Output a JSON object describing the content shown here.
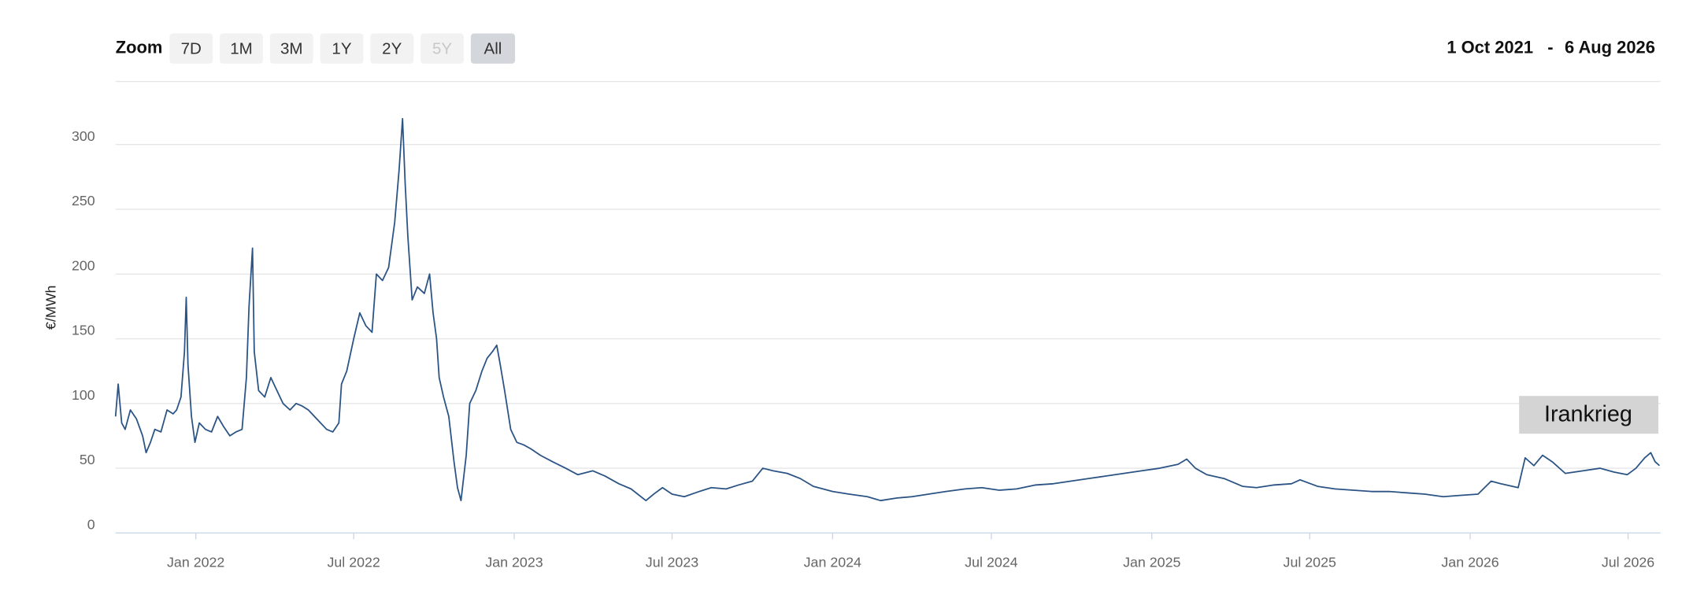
{
  "range_selector": {
    "label": "Zoom",
    "buttons": [
      {
        "label": "7D"
      },
      {
        "label": "1M"
      },
      {
        "label": "3M"
      },
      {
        "label": "1Y"
      },
      {
        "label": "2Y"
      },
      {
        "label": "5Y",
        "disabled": true
      },
      {
        "label": "All",
        "selected": true
      }
    ]
  },
  "date_range": {
    "from": "1 Oct 2021",
    "separator": "-",
    "to": "6 Aug 2026"
  },
  "chart_data": {
    "type": "line",
    "y_label": "€/MWh",
    "color": "#2b5485",
    "grid": true,
    "xlim": [
      "2021-10-01",
      "2026-08-06"
    ],
    "xticks": [
      {
        "value": "2022-01-01",
        "label": "Jan 2022"
      },
      {
        "value": "2022-07-01",
        "label": "Jul 2022"
      },
      {
        "value": "2023-01-01",
        "label": "Jan 2023"
      },
      {
        "value": "2023-07-01",
        "label": "Jul 2023"
      },
      {
        "value": "2024-01-01",
        "label": "Jan 2024"
      },
      {
        "value": "2024-07-01",
        "label": "Jul 2024"
      },
      {
        "value": "2025-01-01",
        "label": "Jan 2025"
      },
      {
        "value": "2025-07-01",
        "label": "Jul 2025"
      },
      {
        "value": "2026-01-01",
        "label": "Jan 2026"
      },
      {
        "value": "2026-07-01",
        "label": "Jul 2026"
      }
    ],
    "ylim": [
      0,
      350
    ],
    "yticks": [
      0,
      50,
      100,
      150,
      200,
      250,
      300
    ],
    "annotation": "Irankrieg",
    "x": [
      "2021-10-01",
      "2021-10-04",
      "2021-10-08",
      "2021-10-12",
      "2021-10-18",
      "2021-10-25",
      "2021-11-01",
      "2021-11-05",
      "2021-11-10",
      "2021-11-15",
      "2021-11-22",
      "2021-11-29",
      "2021-12-06",
      "2021-12-10",
      "2021-12-15",
      "2021-12-19",
      "2021-12-21",
      "2021-12-23",
      "2021-12-27",
      "2021-12-31",
      "2022-01-05",
      "2022-01-12",
      "2022-01-19",
      "2022-01-26",
      "2022-02-02",
      "2022-02-09",
      "2022-02-16",
      "2022-02-23",
      "2022-02-28",
      "2022-03-03",
      "2022-03-07",
      "2022-03-09",
      "2022-03-14",
      "2022-03-21",
      "2022-03-28",
      "2022-04-04",
      "2022-04-11",
      "2022-04-19",
      "2022-04-26",
      "2022-05-03",
      "2022-05-10",
      "2022-05-17",
      "2022-05-24",
      "2022-05-31",
      "2022-06-07",
      "2022-06-14",
      "2022-06-17",
      "2022-06-23",
      "2022-07-01",
      "2022-07-08",
      "2022-07-15",
      "2022-07-22",
      "2022-07-27",
      "2022-08-03",
      "2022-08-10",
      "2022-08-17",
      "2022-08-22",
      "2022-08-26",
      "2022-08-29",
      "2022-09-01",
      "2022-09-06",
      "2022-09-12",
      "2022-09-20",
      "2022-09-26",
      "2022-09-30",
      "2022-10-04",
      "2022-10-07",
      "2022-10-12",
      "2022-10-18",
      "2022-10-24",
      "2022-10-28",
      "2022-11-01",
      "2022-11-07",
      "2022-11-11",
      "2022-11-18",
      "2022-11-25",
      "2022-12-01",
      "2022-12-07",
      "2022-12-12",
      "2022-12-16",
      "2022-12-21",
      "2022-12-28",
      "2023-01-04",
      "2023-01-12",
      "2023-01-20",
      "2023-01-31",
      "2023-02-14",
      "2023-03-01",
      "2023-03-15",
      "2023-04-01",
      "2023-04-15",
      "2023-05-01",
      "2023-05-15",
      "2023-06-01",
      "2023-06-10",
      "2023-06-20",
      "2023-07-01",
      "2023-07-15",
      "2023-08-01",
      "2023-08-15",
      "2023-09-01",
      "2023-09-15",
      "2023-10-01",
      "2023-10-13",
      "2023-10-25",
      "2023-11-10",
      "2023-11-25",
      "2023-12-10",
      "2024-01-01",
      "2024-01-20",
      "2024-02-10",
      "2024-02-25",
      "2024-03-15",
      "2024-04-01",
      "2024-04-20",
      "2024-05-10",
      "2024-06-01",
      "2024-06-20",
      "2024-07-10",
      "2024-07-30",
      "2024-08-20",
      "2024-09-10",
      "2024-09-30",
      "2024-10-20",
      "2024-11-10",
      "2024-11-30",
      "2024-12-20",
      "2025-01-10",
      "2025-01-31",
      "2025-02-10",
      "2025-02-20",
      "2025-03-05",
      "2025-03-25",
      "2025-04-15",
      "2025-05-01",
      "2025-05-20",
      "2025-06-10",
      "2025-06-20",
      "2025-07-10",
      "2025-07-30",
      "2025-08-20",
      "2025-09-10",
      "2025-09-30",
      "2025-10-20",
      "2025-11-10",
      "2025-12-01",
      "2025-12-20",
      "2026-01-10",
      "2026-01-25",
      "2026-02-05",
      "2026-02-25",
      "2026-03-05",
      "2026-03-15",
      "2026-03-25",
      "2026-04-05",
      "2026-04-20",
      "2026-05-10",
      "2026-05-30",
      "2026-06-15",
      "2026-06-30",
      "2026-07-10",
      "2026-07-20",
      "2026-07-27",
      "2026-08-01",
      "2026-08-06"
    ],
    "series": [
      {
        "values": [
          90,
          115,
          85,
          80,
          95,
          88,
          75,
          62,
          70,
          80,
          78,
          95,
          92,
          95,
          105,
          140,
          182,
          130,
          90,
          70,
          85,
          80,
          78,
          90,
          82,
          75,
          78,
          80,
          120,
          175,
          220,
          140,
          110,
          105,
          120,
          110,
          100,
          95,
          100,
          98,
          95,
          90,
          85,
          80,
          78,
          85,
          115,
          125,
          150,
          170,
          160,
          155,
          200,
          195,
          205,
          240,
          280,
          320,
          270,
          230,
          180,
          190,
          185,
          200,
          170,
          150,
          120,
          105,
          90,
          55,
          35,
          25,
          60,
          100,
          110,
          125,
          135,
          140,
          145,
          130,
          110,
          80,
          70,
          68,
          65,
          60,
          55,
          50,
          45,
          48,
          44,
          38,
          34,
          25,
          30,
          35,
          30,
          28,
          32,
          35,
          34,
          37,
          40,
          50,
          48,
          46,
          42,
          36,
          32,
          30,
          28,
          25,
          27,
          28,
          30,
          32,
          34,
          35,
          33,
          34,
          37,
          38,
          40,
          42,
          44,
          46,
          48,
          50,
          53,
          57,
          50,
          45,
          42,
          36,
          35,
          37,
          38,
          41,
          36,
          34,
          33,
          32,
          32,
          31,
          30,
          28,
          29,
          30,
          40,
          38,
          35,
          58,
          52,
          60,
          55,
          46,
          48,
          50,
          47,
          45,
          50,
          58,
          62,
          55,
          52
        ]
      }
    ]
  }
}
